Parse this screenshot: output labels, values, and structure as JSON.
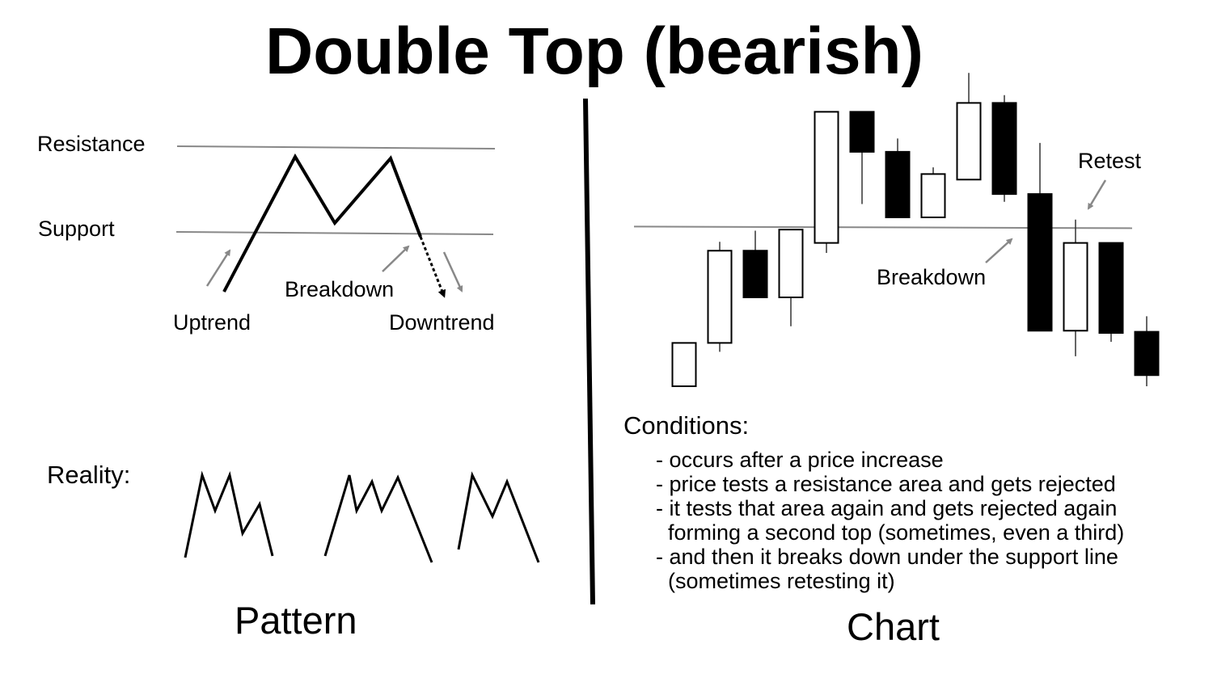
{
  "title": "Double Top (bearish)",
  "pattern": {
    "labels": {
      "resistance": "Resistance",
      "support": "Support",
      "breakdown": "Breakdown",
      "uptrend": "Uptrend",
      "downtrend": "Downtrend",
      "reality": "Reality:"
    },
    "caption": "Pattern"
  },
  "chart": {
    "labels": {
      "retest": "Retest",
      "breakdown": "Breakdown"
    },
    "caption": "Chart",
    "candles": [
      {
        "color": "white",
        "open": 0.0,
        "close": 19.5,
        "high": 19.5,
        "low": 0.0
      },
      {
        "color": "white",
        "open": 19.5,
        "close": 61.0,
        "high": 65.0,
        "low": 15.5
      },
      {
        "color": "black",
        "open": 61.0,
        "close": 40.0,
        "high": 70.0,
        "low": 40.0
      },
      {
        "color": "white",
        "open": 40.0,
        "close": 70.5,
        "high": 70.5,
        "low": 27.0
      },
      {
        "color": "white",
        "open": 64.5,
        "close": 123.5,
        "high": 123.5,
        "low": 60.0
      },
      {
        "color": "black",
        "open": 123.5,
        "close": 105.5,
        "high": 123.5,
        "low": 82.0
      },
      {
        "color": "black",
        "open": 105.5,
        "close": 76.0,
        "high": 111.5,
        "low": 76.0
      },
      {
        "color": "white",
        "open": 76.0,
        "close": 95.5,
        "high": 98.5,
        "low": 76.0
      },
      {
        "color": "white",
        "open": 93.0,
        "close": 127.5,
        "high": 141.0,
        "low": 93.0
      },
      {
        "color": "black",
        "open": 127.5,
        "close": 86.5,
        "high": 131.0,
        "low": 83.0
      },
      {
        "color": "black",
        "open": 86.5,
        "close": 25.0,
        "high": 109.5,
        "low": 25.0
      },
      {
        "color": "white",
        "open": 25.0,
        "close": 64.5,
        "high": 75.0,
        "low": 13.5
      },
      {
        "color": "black",
        "open": 64.5,
        "close": 24.0,
        "high": 64.5,
        "low": 20.0
      },
      {
        "color": "black",
        "open": 24.5,
        "close": 5.0,
        "high": 31.5,
        "low": 0.0
      }
    ],
    "support_level": 71.5
  },
  "conditions": {
    "heading": "Conditions:",
    "items": [
      "- occurs after a price increase",
      "- price tests a resistance area and gets rejected",
      "- it tests that area again and gets rejected again",
      "  forming a second top (sometimes, even a third)",
      "- and then it breaks down under the support line",
      "  (sometimes retesting it)"
    ]
  }
}
